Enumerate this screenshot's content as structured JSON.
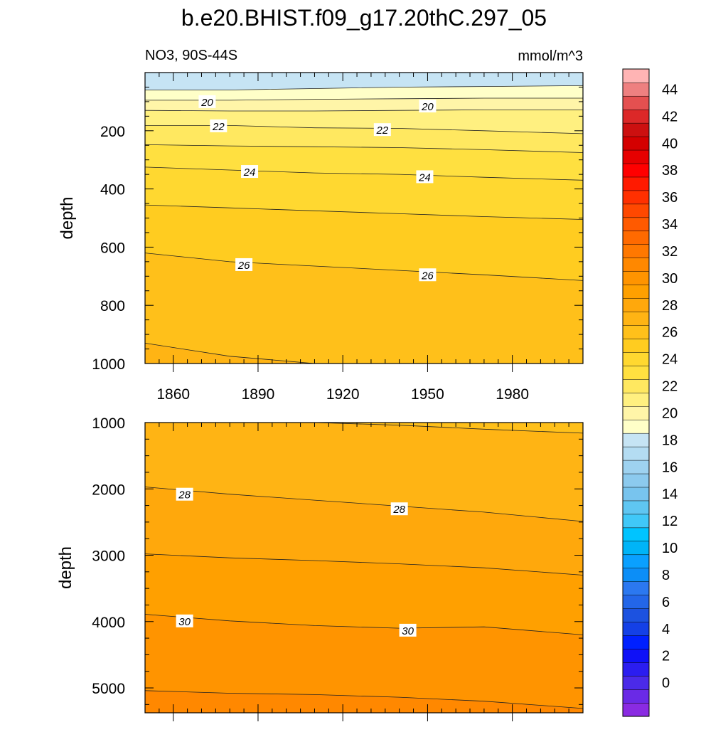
{
  "title": "b.e20.BHIST.f09_g17.20thC.297_05",
  "panel_left_label": "NO3, 90S-44S",
  "panel_right_label": "mmol/m^3",
  "colorbar": {
    "levels": [
      0,
      2,
      4,
      6,
      8,
      10,
      12,
      14,
      16,
      18,
      20,
      22,
      24,
      26,
      28,
      30,
      32,
      34,
      36,
      38,
      40,
      42,
      44
    ],
    "colors": [
      "#8a2be2",
      "#6a2ae6",
      "#4b2ae8",
      "#2b1df0",
      "#0f11f7",
      "#0020ff",
      "#1440e6",
      "#1c52e0",
      "#2366e8",
      "#2b78f0",
      "#0c8ef7",
      "#0aa0ff",
      "#00b4f7",
      "#00c4ff",
      "#40c8f8",
      "#5fc6f2",
      "#78c4ee",
      "#8ccaee",
      "#9ed2f0",
      "#b4dcf2",
      "#c6e4f4",
      "#ffffc8",
      "#fff5a8",
      "#fff080",
      "#ffe860",
      "#ffe040",
      "#ffd830",
      "#ffcc20",
      "#ffc01a",
      "#ffb414",
      "#ffa80c",
      "#ffa000",
      "#ff9400",
      "#ff8800",
      "#ff7800",
      "#ff6a00",
      "#ff5a00",
      "#ff4800",
      "#ff3000",
      "#ff1a00",
      "#ff0000",
      "#e60000",
      "#d40000",
      "#cc1010",
      "#dc2828",
      "#e45050",
      "#ee8080",
      "#ffb4b4"
    ],
    "tick_labels": [
      "0",
      "2",
      "4",
      "6",
      "8",
      "10",
      "12",
      "14",
      "16",
      "18",
      "20",
      "22",
      "24",
      "26",
      "28",
      "30",
      "32",
      "34",
      "36",
      "38",
      "40",
      "42",
      "44"
    ]
  },
  "chart_data": [
    {
      "type": "contour",
      "panel": "upper",
      "title": "NO3, 90S-44S",
      "units": "mmol/m^3",
      "xlabel": "",
      "ylabel": "depth",
      "xlim": [
        1850,
        2005
      ],
      "ylim": [
        1000,
        0
      ],
      "xticks": [
        1860,
        1890,
        1920,
        1950,
        1980
      ],
      "yticks": [
        200,
        400,
        600,
        800,
        1000
      ],
      "contours": [
        {
          "level": 19,
          "depth": [
            60,
            60,
            55,
            50,
            48,
            45
          ]
        },
        {
          "level": 20,
          "depth": [
            95,
            95,
            92,
            90,
            88,
            88
          ]
        },
        {
          "level": 21,
          "depth": [
            130,
            132,
            132,
            130,
            128,
            128
          ]
        },
        {
          "level": 22,
          "depth": [
            182,
            182,
            190,
            192,
            200,
            210
          ]
        },
        {
          "level": 23,
          "depth": [
            248,
            252,
            255,
            258,
            265,
            275
          ]
        },
        {
          "level": 24,
          "depth": [
            325,
            335,
            345,
            350,
            360,
            370
          ]
        },
        {
          "level": 25,
          "depth": [
            455,
            465,
            475,
            485,
            495,
            505
          ]
        },
        {
          "level": 26,
          "depth": [
            620,
            650,
            665,
            680,
            695,
            715
          ]
        },
        {
          "level": 27,
          "depth": [
            930,
            975,
            1000,
            1000,
            1000,
            1000
          ]
        }
      ],
      "contour_x": [
        1850,
        1880,
        1910,
        1940,
        1970,
        2005
      ],
      "contour_labels": [
        {
          "text": "20",
          "x": 1872,
          "y": 100
        },
        {
          "text": "20",
          "x": 1950,
          "y": 115
        },
        {
          "text": "22",
          "x": 1876,
          "y": 183
        },
        {
          "text": "22",
          "x": 1934,
          "y": 196
        },
        {
          "text": "24",
          "x": 1887,
          "y": 340
        },
        {
          "text": "24",
          "x": 1949,
          "y": 358
        },
        {
          "text": "26",
          "x": 1885,
          "y": 660
        },
        {
          "text": "26",
          "x": 1950,
          "y": 695
        }
      ]
    },
    {
      "type": "contour",
      "panel": "lower",
      "title": "",
      "xlabel": "",
      "ylabel": "depth",
      "xlim": [
        1850,
        2005
      ],
      "ylim": [
        5375,
        1000
      ],
      "xticks": [
        1860,
        1890,
        1920,
        1950,
        1980
      ],
      "yticks": [
        1000,
        2000,
        3000,
        4000,
        5000
      ],
      "contours": [
        {
          "level": 27,
          "depth": [
            1000,
            1000,
            1000,
            1040,
            1100,
            1160
          ]
        },
        {
          "level": 28,
          "depth": [
            1970,
            2080,
            2170,
            2260,
            2350,
            2490
          ]
        },
        {
          "level": 29,
          "depth": [
            2980,
            3040,
            3080,
            3130,
            3190,
            3300
          ]
        },
        {
          "level": 30,
          "depth": [
            3890,
            3990,
            4060,
            4100,
            4080,
            4200
          ]
        },
        {
          "level": 31,
          "depth": [
            5040,
            5080,
            5100,
            5140,
            5200,
            5310
          ]
        }
      ],
      "contour_x": [
        1850,
        1880,
        1910,
        1940,
        1970,
        2005
      ],
      "contour_labels": [
        {
          "text": "28",
          "x": 1864,
          "y": 2080
        },
        {
          "text": "28",
          "x": 1940,
          "y": 2300
        },
        {
          "text": "30",
          "x": 1864,
          "y": 3990
        },
        {
          "text": "30",
          "x": 1943,
          "y": 4130
        }
      ]
    }
  ]
}
